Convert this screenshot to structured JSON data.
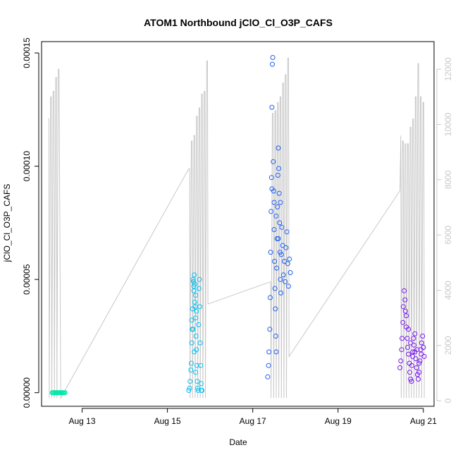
{
  "chart_data": {
    "type": "scatter",
    "title": "ATOM1 Northbound jClO_Cl_O3P_CAFS",
    "xlabel": "Date",
    "ylabel": "jClO_Cl_O3P_CAFS",
    "x_ticks": [
      {
        "day": 13,
        "label": "Aug 13"
      },
      {
        "day": 15,
        "label": "Aug 15"
      },
      {
        "day": 17,
        "label": "Aug 17"
      },
      {
        "day": 19,
        "label": "Aug 19"
      },
      {
        "day": 21,
        "label": "Aug 21"
      }
    ],
    "xlim": [
      12.05,
      21.25
    ],
    "ylim": [
      -6e-06,
      0.000155
    ],
    "y_ticks": [
      "0.00000",
      "0.00005",
      "0.00010",
      "0.00015"
    ],
    "y_tick_values": [
      0,
      5e-05,
      0.0001,
      0.00015
    ],
    "y2lim": [
      -200,
      13000
    ],
    "y2_ticks": [
      0,
      2000,
      4000,
      6000,
      8000,
      10000,
      12000
    ],
    "grid": false,
    "series": [
      {
        "color": "#00e8a8",
        "points": [
          [
            12.3,
            0
          ],
          [
            12.32,
            0
          ],
          [
            12.34,
            0
          ],
          [
            12.36,
            0
          ],
          [
            12.38,
            0
          ],
          [
            12.4,
            0
          ],
          [
            12.42,
            0
          ],
          [
            12.44,
            0
          ],
          [
            12.46,
            0
          ],
          [
            12.48,
            0
          ],
          [
            12.5,
            0
          ],
          [
            12.52,
            0
          ],
          [
            12.54,
            0
          ],
          [
            12.56,
            0
          ],
          [
            12.58,
            0
          ],
          [
            12.6,
            0
          ]
        ]
      },
      {
        "color": "#00bff0",
        "points": [
          [
            15.5,
            1e-06
          ],
          [
            15.52,
            2e-06
          ],
          [
            15.53,
            5e-06
          ],
          [
            15.55,
            1e-05
          ],
          [
            15.56,
            1.3e-05
          ],
          [
            15.57,
            2.2e-05
          ],
          [
            15.58,
            2.8e-05
          ],
          [
            15.59,
            3.7e-05
          ],
          [
            15.6,
            5e-05
          ],
          [
            15.61,
            4.9e-05
          ],
          [
            15.62,
            4.7e-05
          ],
          [
            15.63,
            5.2e-05
          ],
          [
            15.64,
            4.8e-05
          ],
          [
            15.65,
            3.8e-05
          ],
          [
            15.66,
            3.3e-05
          ],
          [
            15.67,
            2.5e-05
          ],
          [
            15.68,
            1.9e-05
          ],
          [
            15.69,
            1.2e-05
          ],
          [
            15.7,
            5e-06
          ],
          [
            15.71,
            2e-06
          ],
          [
            15.72,
            1e-06
          ],
          [
            15.73,
            3e-05
          ],
          [
            15.74,
            4.6e-05
          ],
          [
            15.75,
            5e-05
          ],
          [
            15.76,
            3.8e-05
          ],
          [
            15.77,
            2.2e-05
          ],
          [
            15.78,
            1.2e-05
          ],
          [
            15.79,
            4e-06
          ],
          [
            15.8,
            1e-06
          ],
          [
            15.81,
            1e-06
          ],
          [
            15.62,
            4.5e-05
          ],
          [
            15.64,
            4e-05
          ],
          [
            15.66,
            4.3e-05
          ],
          [
            15.68,
            3.6e-05
          ],
          [
            15.57,
            3.2e-05
          ],
          [
            15.6,
            2.8e-05
          ],
          [
            15.63,
            1.8e-05
          ],
          [
            15.66,
            9e-06
          ]
        ]
      },
      {
        "color": "#2060f0",
        "points": [
          [
            17.35,
            7e-06
          ],
          [
            17.37,
            1.2e-05
          ],
          [
            17.38,
            1.8e-05
          ],
          [
            17.4,
            2.8e-05
          ],
          [
            17.41,
            4.2e-05
          ],
          [
            17.42,
            6.2e-05
          ],
          [
            17.43,
            8e-05
          ],
          [
            17.44,
            9.5e-05
          ],
          [
            17.45,
            0.000126
          ],
          [
            17.46,
            0.000145
          ],
          [
            17.47,
            0.000148
          ],
          [
            17.48,
            0.000102
          ],
          [
            17.49,
            8.9e-05
          ],
          [
            17.5,
            7.2e-05
          ],
          [
            17.51,
            5.8e-05
          ],
          [
            17.52,
            4.6e-05
          ],
          [
            17.53,
            3.7e-05
          ],
          [
            17.54,
            2.5e-05
          ],
          [
            17.55,
            1.8e-05
          ],
          [
            17.56,
            5.5e-05
          ],
          [
            17.57,
            6.8e-05
          ],
          [
            17.58,
            8.2e-05
          ],
          [
            17.59,
            9.6e-05
          ],
          [
            17.6,
            0.000108
          ],
          [
            17.61,
            9.9e-05
          ],
          [
            17.62,
            8.8e-05
          ],
          [
            17.63,
            7.5e-05
          ],
          [
            17.64,
            6.2e-05
          ],
          [
            17.65,
            5e-05
          ],
          [
            17.66,
            4.4e-05
          ],
          [
            17.67,
            6.1e-05
          ],
          [
            17.68,
            7.3e-05
          ],
          [
            17.7,
            6.5e-05
          ],
          [
            17.72,
            5.2e-05
          ],
          [
            17.74,
            5.8e-05
          ],
          [
            17.76,
            4.9e-05
          ],
          [
            17.78,
            6.4e-05
          ],
          [
            17.8,
            7.1e-05
          ],
          [
            17.82,
            5.7e-05
          ],
          [
            17.84,
            4.7e-05
          ],
          [
            17.86,
            5.9e-05
          ],
          [
            17.88,
            5.3e-05
          ],
          [
            17.45,
            9e-05
          ],
          [
            17.5,
            8.4e-05
          ],
          [
            17.55,
            7.8e-05
          ],
          [
            17.6,
            6.8e-05
          ],
          [
            17.65,
            8.4e-05
          ]
        ]
      },
      {
        "color": "#7a18f0",
        "points": [
          [
            20.45,
            1.1e-05
          ],
          [
            20.47,
            1.4e-05
          ],
          [
            20.49,
            1.9e-05
          ],
          [
            20.5,
            2.4e-05
          ],
          [
            20.52,
            3.1e-05
          ],
          [
            20.53,
            3.8e-05
          ],
          [
            20.55,
            4.5e-05
          ],
          [
            20.57,
            4.1e-05
          ],
          [
            20.58,
            3.6e-05
          ],
          [
            20.6,
            2.9e-05
          ],
          [
            20.62,
            2.4e-05
          ],
          [
            20.63,
            2e-05
          ],
          [
            20.65,
            1.7e-05
          ],
          [
            20.67,
            1.3e-05
          ],
          [
            20.68,
            9e-06
          ],
          [
            20.7,
            6e-06
          ],
          [
            20.72,
            5e-06
          ],
          [
            20.73,
            1.2e-05
          ],
          [
            20.75,
            1.8e-05
          ],
          [
            20.77,
            2.4e-05
          ],
          [
            20.78,
            2.1e-05
          ],
          [
            20.8,
            1.8e-05
          ],
          [
            20.82,
            1.5e-05
          ],
          [
            20.84,
            1.1e-05
          ],
          [
            20.86,
            8e-06
          ],
          [
            20.88,
            6e-06
          ],
          [
            20.9,
            9e-06
          ],
          [
            20.92,
            1.4e-05
          ],
          [
            20.94,
            1.9e-05
          ],
          [
            20.96,
            2.2e-05
          ],
          [
            20.98,
            2.5e-05
          ],
          [
            21.0,
            2e-05
          ],
          [
            21.02,
            1.6e-05
          ],
          [
            20.6,
            3.4e-05
          ],
          [
            20.65,
            2.8e-05
          ],
          [
            20.7,
            2.2e-05
          ],
          [
            20.75,
            1.6e-05
          ],
          [
            20.8,
            2.6e-05
          ],
          [
            20.85,
            1.9e-05
          ],
          [
            20.9,
            1.3e-05
          ],
          [
            20.95,
            1.7e-05
          ]
        ]
      }
    ],
    "background_line": {
      "color": "#c8c8c8",
      "y_axis": "right",
      "segments": [
        [
          [
            12.2,
            10200
          ],
          [
            12.22,
            10200
          ],
          [
            12.23,
            100
          ],
          [
            12.26,
            11000
          ],
          [
            12.28,
            11000
          ],
          [
            12.29,
            100
          ],
          [
            12.32,
            11200
          ],
          [
            12.34,
            11200
          ],
          [
            12.35,
            100
          ],
          [
            12.38,
            11700
          ],
          [
            12.4,
            11700
          ],
          [
            12.41,
            100
          ],
          [
            12.44,
            12000
          ],
          [
            12.46,
            12000
          ],
          [
            12.5,
            100
          ],
          [
            15.5,
            8400
          ],
          [
            15.52,
            8400
          ],
          [
            15.53,
            100
          ],
          [
            15.56,
            9400
          ],
          [
            15.58,
            9400
          ],
          [
            15.59,
            100
          ],
          [
            15.62,
            9600
          ],
          [
            15.64,
            9600
          ],
          [
            15.65,
            100
          ],
          [
            15.68,
            10300
          ],
          [
            15.7,
            10300
          ],
          [
            15.71,
            100
          ],
          [
            15.74,
            10600
          ],
          [
            15.76,
            10600
          ],
          [
            15.77,
            100
          ],
          [
            15.8,
            11100
          ],
          [
            15.82,
            11100
          ],
          [
            15.83,
            100
          ],
          [
            15.86,
            11200
          ],
          [
            15.88,
            11200
          ],
          [
            15.89,
            100
          ],
          [
            15.92,
            12300
          ],
          [
            15.94,
            12300
          ],
          [
            15.95,
            3500
          ],
          [
            17.4,
            4300
          ],
          [
            17.42,
            4300
          ],
          [
            17.43,
            100
          ],
          [
            17.46,
            10400
          ],
          [
            17.48,
            10400
          ],
          [
            17.49,
            100
          ],
          [
            17.52,
            10500
          ],
          [
            17.54,
            10500
          ],
          [
            17.55,
            100
          ],
          [
            17.58,
            10800
          ],
          [
            17.6,
            10800
          ],
          [
            17.61,
            100
          ],
          [
            17.64,
            11000
          ],
          [
            17.66,
            11000
          ],
          [
            17.67,
            100
          ],
          [
            17.7,
            11500
          ],
          [
            17.72,
            11500
          ],
          [
            17.73,
            100
          ],
          [
            17.76,
            11800
          ],
          [
            17.78,
            11800
          ],
          [
            17.79,
            100
          ],
          [
            17.82,
            12400
          ],
          [
            17.84,
            12400
          ],
          [
            17.85,
            1600
          ],
          [
            20.45,
            7600
          ],
          [
            20.47,
            9600
          ],
          [
            20.48,
            100
          ],
          [
            20.51,
            9400
          ],
          [
            20.53,
            9400
          ],
          [
            20.54,
            100
          ],
          [
            20.57,
            9300
          ],
          [
            20.59,
            9300
          ],
          [
            20.6,
            100
          ],
          [
            20.63,
            9300
          ],
          [
            20.65,
            9300
          ],
          [
            20.66,
            100
          ],
          [
            20.69,
            9900
          ],
          [
            20.71,
            9900
          ],
          [
            20.72,
            100
          ],
          [
            20.75,
            10200
          ],
          [
            20.77,
            10200
          ],
          [
            20.78,
            100
          ],
          [
            20.81,
            11000
          ],
          [
            20.83,
            11000
          ],
          [
            20.84,
            100
          ],
          [
            20.87,
            12200
          ],
          [
            20.89,
            12200
          ],
          [
            20.9,
            100
          ],
          [
            20.93,
            11000
          ],
          [
            20.95,
            11000
          ],
          [
            20.96,
            100
          ],
          [
            20.99,
            10800
          ],
          [
            21.01,
            10800
          ],
          [
            21.02,
            100
          ]
        ]
      ]
    }
  }
}
